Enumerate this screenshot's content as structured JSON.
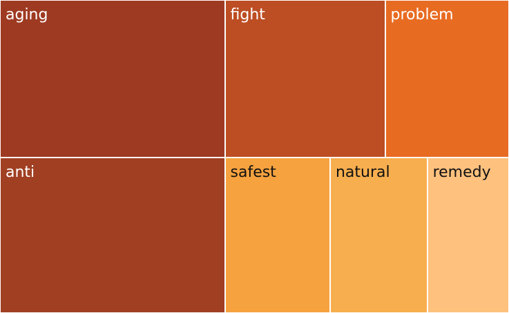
{
  "chart_data": {
    "type": "treemap",
    "title": "",
    "items": [
      {
        "label": "aging",
        "value": 22.3,
        "color": "#9e3a22",
        "text_color": "#ffffff"
      },
      {
        "label": "anti",
        "value": 22.0,
        "color": "#a13f23",
        "text_color": "#ffffff"
      },
      {
        "label": "fight",
        "value": 15.9,
        "color": "#bd4e23",
        "text_color": "#ffffff"
      },
      {
        "label": "problem",
        "value": 12.3,
        "color": "#e86b22",
        "text_color": "#ffffff"
      },
      {
        "label": "safest",
        "value": 10.3,
        "color": "#f5a23f",
        "text_color": "#111111"
      },
      {
        "label": "natural",
        "value": 9.5,
        "color": "#f7ae4e",
        "text_color": "#111111"
      },
      {
        "label": "remedy",
        "value": 8.0,
        "color": "#fec17e",
        "text_color": "#111111"
      }
    ]
  }
}
